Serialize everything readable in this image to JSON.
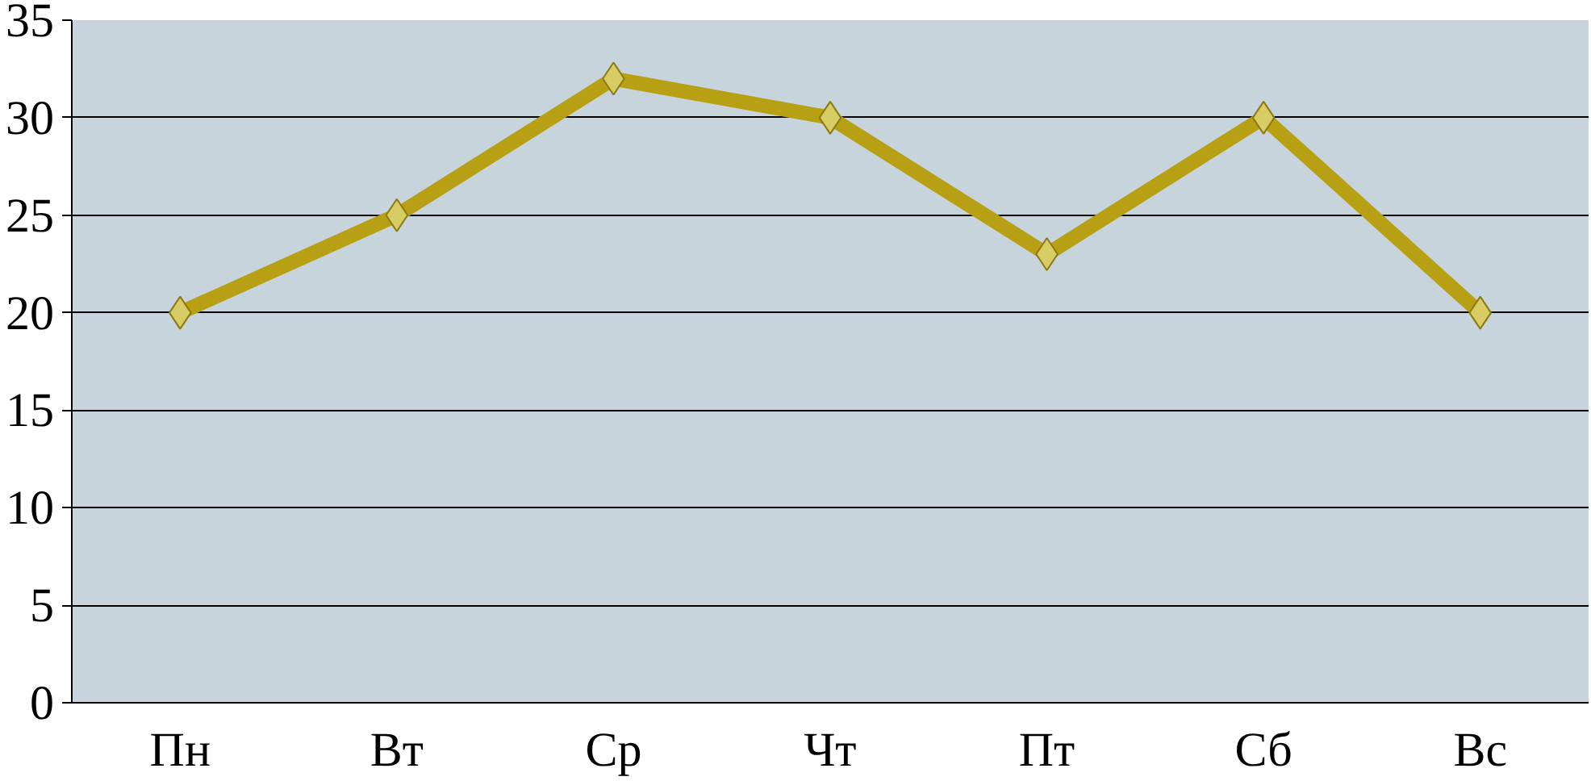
{
  "chart_data": {
    "type": "line",
    "categories": [
      "Пн",
      "Вт",
      "Ср",
      "Чт",
      "Пт",
      "Сб",
      "Вс"
    ],
    "series": [
      {
        "color": "#b8a014",
        "values": [
          20,
          25,
          32,
          30,
          23,
          30,
          20
        ]
      }
    ],
    "ylim": [
      0,
      35
    ],
    "yticks": [
      0,
      5,
      10,
      15,
      20,
      25,
      30,
      35
    ],
    "grid": "y",
    "marker": "diamond",
    "line_style": "solid"
  }
}
